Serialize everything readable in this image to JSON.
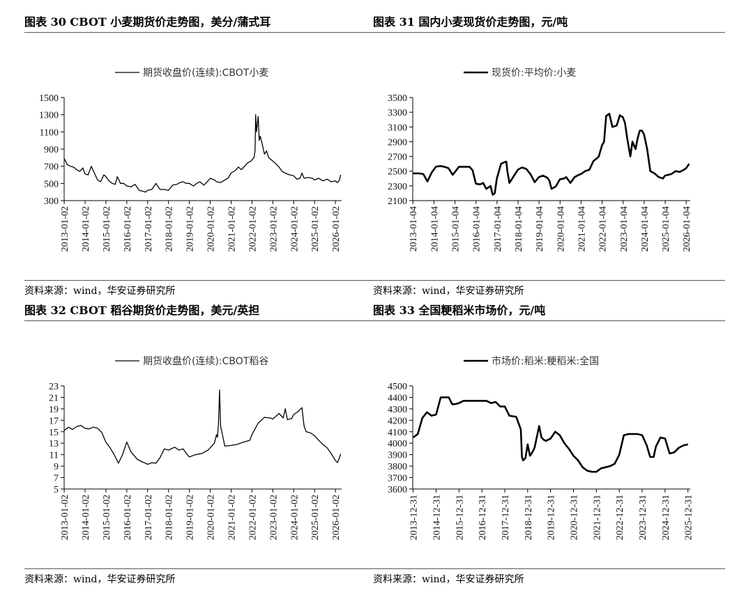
{
  "panels": [
    {
      "title": "图表 30 CBOT 小麦期货价走势图，美分/蒲式耳",
      "source": "资料来源：wind，华安证券研究所",
      "chart_data": {
        "type": "line",
        "legend": "期货收盘价(连续):CBOT小麦",
        "series_name": "期货收盘价(连续):CBOT小麦",
        "line_width": 1.3,
        "ylim": [
          300,
          1500
        ],
        "yticks": [
          300,
          500,
          700,
          900,
          1100,
          1300,
          1500
        ],
        "xlim": [
          2013.0,
          2026.3
        ],
        "xticks": [
          "2013-01-02",
          "2014-01-02",
          "2015-01-02",
          "2016-01-02",
          "2017-01-02",
          "2018-01-02",
          "2019-01-02",
          "2020-01-02",
          "2021-01-02",
          "2022-01-02",
          "2023-01-02",
          "2024-01-02",
          "2025-01-02",
          "2026-01-02"
        ],
        "x": [
          2013.0,
          2013.15,
          2013.3,
          2013.45,
          2013.6,
          2013.75,
          2013.9,
          2014.0,
          2014.15,
          2014.3,
          2014.45,
          2014.6,
          2014.75,
          2014.9,
          2015.0,
          2015.15,
          2015.3,
          2015.45,
          2015.55,
          2015.7,
          2015.85,
          2016.0,
          2016.2,
          2016.4,
          2016.6,
          2016.75,
          2016.9,
          2017.0,
          2017.2,
          2017.4,
          2017.5,
          2017.6,
          2017.8,
          2018.0,
          2018.2,
          2018.4,
          2018.55,
          2018.7,
          2018.85,
          2019.0,
          2019.2,
          2019.35,
          2019.5,
          2019.7,
          2019.9,
          2020.0,
          2020.2,
          2020.3,
          2020.5,
          2020.7,
          2020.85,
          2021.0,
          2021.2,
          2021.35,
          2021.5,
          2021.65,
          2021.8,
          2021.95,
          2022.1,
          2022.15,
          2022.18,
          2022.22,
          2022.3,
          2022.35,
          2022.4,
          2022.5,
          2022.6,
          2022.7,
          2022.8,
          2022.95,
          2023.1,
          2023.3,
          2023.45,
          2023.6,
          2023.8,
          2024.0,
          2024.15,
          2024.3,
          2024.4,
          2024.5,
          2024.7,
          2024.9,
          2025.0,
          2025.2,
          2025.4,
          2025.6,
          2025.8,
          2026.0,
          2026.1,
          2026.2,
          2026.25
        ],
        "y": [
          790,
          720,
          700,
          690,
          660,
          640,
          680,
          610,
          600,
          700,
          620,
          540,
          520,
          600,
          580,
          530,
          500,
          490,
          580,
          500,
          500,
          470,
          460,
          490,
          420,
          410,
          400,
          420,
          430,
          500,
          460,
          430,
          430,
          420,
          480,
          490,
          510,
          520,
          500,
          500,
          470,
          500,
          520,
          480,
          530,
          560,
          540,
          520,
          510,
          540,
          560,
          620,
          650,
          690,
          660,
          700,
          740,
          760,
          800,
          880,
          1300,
          1100,
          1280,
          1000,
          1050,
          950,
          840,
          880,
          800,
          770,
          740,
          690,
          640,
          620,
          600,
          590,
          550,
          560,
          620,
          560,
          570,
          560,
          540,
          560,
          530,
          550,
          520,
          530,
          510,
          540,
          600
        ]
      }
    },
    {
      "title": "图表 31 国内小麦现货价走势图，元/吨",
      "source": "资料来源：wind，华安证券研究所",
      "chart_data": {
        "type": "line",
        "legend": "现货价:平均价:小麦",
        "series_name": "现货价:平均价:小麦",
        "line_width": 2.6,
        "ylim": [
          2100,
          3500
        ],
        "yticks": [
          2100,
          2300,
          2500,
          2700,
          2900,
          3100,
          3300,
          3500
        ],
        "xlim": [
          2013.0,
          2026.2
        ],
        "xticks": [
          "2013-01-04",
          "2014-01-04",
          "2015-01-04",
          "2016-01-04",
          "2017-01-04",
          "2018-01-04",
          "2019-01-04",
          "2020-01-04",
          "2021-01-04",
          "2022-01-04",
          "2023-01-04",
          "2024-01-04",
          "2025-01-04",
          "2026-01-04"
        ],
        "x": [
          2013.0,
          2013.3,
          2013.5,
          2013.7,
          2013.9,
          2014.1,
          2014.3,
          2014.5,
          2014.7,
          2014.9,
          2015.2,
          2015.5,
          2015.7,
          2015.85,
          2016.0,
          2016.2,
          2016.35,
          2016.5,
          2016.6,
          2016.7,
          2016.8,
          2016.9,
          2017.0,
          2017.2,
          2017.35,
          2017.45,
          2017.5,
          2017.6,
          2017.8,
          2018.0,
          2018.2,
          2018.4,
          2018.6,
          2018.8,
          2019.0,
          2019.2,
          2019.4,
          2019.5,
          2019.6,
          2019.8,
          2020.0,
          2020.2,
          2020.3,
          2020.5,
          2020.7,
          2020.9,
          2021.0,
          2021.2,
          2021.4,
          2021.6,
          2021.7,
          2021.85,
          2022.0,
          2022.1,
          2022.2,
          2022.35,
          2022.5,
          2022.7,
          2022.85,
          2023.0,
          2023.1,
          2023.2,
          2023.35,
          2023.45,
          2023.6,
          2023.7,
          2023.8,
          2023.9,
          2024.0,
          2024.15,
          2024.3,
          2024.5,
          2024.7,
          2024.9,
          2025.0,
          2025.3,
          2025.5,
          2025.7,
          2025.9,
          2026.0,
          2026.15
        ],
        "y": [
          2470,
          2470,
          2460,
          2360,
          2480,
          2560,
          2570,
          2560,
          2540,
          2450,
          2560,
          2560,
          2560,
          2510,
          2330,
          2320,
          2340,
          2260,
          2280,
          2300,
          2180,
          2200,
          2400,
          2600,
          2620,
          2630,
          2500,
          2340,
          2430,
          2520,
          2550,
          2530,
          2460,
          2350,
          2420,
          2440,
          2410,
          2370,
          2260,
          2290,
          2390,
          2400,
          2420,
          2340,
          2420,
          2450,
          2460,
          2500,
          2520,
          2640,
          2660,
          2700,
          2850,
          2900,
          3250,
          3280,
          3100,
          3120,
          3260,
          3230,
          3150,
          2950,
          2700,
          2900,
          2800,
          2950,
          3050,
          3050,
          3000,
          2800,
          2500,
          2470,
          2420,
          2400,
          2440,
          2460,
          2500,
          2490,
          2520,
          2540,
          2600
        ]
      }
    },
    {
      "title": "图表 32 CBOT 稻谷期货价走势图，美元/英担",
      "source": "资料来源：wind，华安证券研究所",
      "chart_data": {
        "type": "line",
        "legend": "期货收盘价(连续):CBOT稻谷",
        "series_name": "期货收盘价(连续):CBOT稻谷",
        "line_width": 1.3,
        "ylim": [
          5,
          23
        ],
        "yticks": [
          5,
          7,
          9,
          11,
          13,
          15,
          17,
          19,
          21,
          23
        ],
        "xlim": [
          2013.0,
          2026.3
        ],
        "xticks": [
          "2013-01-02",
          "2014-01-02",
          "2015-01-02",
          "2016-01-02",
          "2017-01-02",
          "2018-01-02",
          "2019-01-02",
          "2020-01-02",
          "2021-01-02",
          "2022-01-02",
          "2023-01-02",
          "2024-01-02",
          "2025-01-02",
          "2026-01-02"
        ],
        "x": [
          2013.0,
          2013.2,
          2013.4,
          2013.6,
          2013.8,
          2014.0,
          2014.2,
          2014.4,
          2014.6,
          2014.8,
          2015.0,
          2015.2,
          2015.4,
          2015.6,
          2015.8,
          2016.0,
          2016.2,
          2016.5,
          2016.7,
          2016.9,
          2017.0,
          2017.2,
          2017.4,
          2017.6,
          2017.8,
          2018.0,
          2018.3,
          2018.5,
          2018.7,
          2018.9,
          2019.0,
          2019.3,
          2019.6,
          2019.9,
          2020.0,
          2020.2,
          2020.3,
          2020.35,
          2020.4,
          2020.45,
          2020.5,
          2020.7,
          2021.0,
          2021.3,
          2021.6,
          2021.9,
          2022.0,
          2022.3,
          2022.6,
          2022.9,
          2023.0,
          2023.3,
          2023.5,
          2023.6,
          2023.7,
          2023.9,
          2024.0,
          2024.2,
          2024.4,
          2024.5,
          2024.6,
          2024.8,
          2025.0,
          2025.2,
          2025.4,
          2025.6,
          2025.8,
          2026.0,
          2026.1,
          2026.2,
          2026.25
        ],
        "y": [
          15.2,
          15.8,
          15.4,
          15.9,
          16.1,
          15.6,
          15.5,
          15.8,
          15.6,
          14.9,
          13.2,
          12.2,
          11.0,
          9.5,
          11.0,
          13.2,
          11.5,
          10.2,
          9.8,
          9.5,
          9.3,
          9.6,
          9.5,
          10.5,
          12.0,
          11.8,
          12.3,
          11.8,
          12.0,
          11.0,
          10.6,
          11.0,
          11.2,
          11.8,
          12.2,
          13.0,
          14.5,
          14.0,
          16.5,
          22.3,
          16.0,
          12.5,
          12.6,
          12.8,
          13.2,
          13.5,
          14.5,
          16.5,
          17.5,
          17.4,
          17.2,
          18.2,
          17.4,
          19.0,
          17.1,
          17.3,
          18.0,
          18.5,
          19.2,
          16.0,
          15.0,
          14.8,
          14.3,
          13.5,
          12.8,
          12.2,
          11.2,
          10.0,
          9.6,
          10.5,
          11.1
        ]
      }
    },
    {
      "title": "图表 33 全国粳稻米市场价，元/吨",
      "source": "资料来源：wind，华安证券研究所",
      "chart_data": {
        "type": "line",
        "legend": "市场价:稻米:粳稻米:全国",
        "series_name": "市场价:稻米:粳稻米:全国",
        "line_width": 2.6,
        "ylim": [
          3600,
          4500
        ],
        "yticks": [
          3600,
          3700,
          3800,
          3900,
          4000,
          4100,
          4200,
          4300,
          4400,
          4500
        ],
        "xlim": [
          2013.98,
          2026.1
        ],
        "xticks": [
          "2013-12-31",
          "2014-12-31",
          "2015-12-31",
          "2016-12-31",
          "2017-12-31",
          "2018-12-31",
          "2019-12-31",
          "2020-12-31",
          "2021-12-31",
          "2022-12-31",
          "2023-12-31",
          "2024-12-31",
          "2025-12-31"
        ],
        "x": [
          2014.0,
          2014.2,
          2014.4,
          2014.6,
          2014.8,
          2015.0,
          2015.2,
          2015.4,
          2015.55,
          2015.7,
          2015.8,
          2016.0,
          2016.2,
          2016.5,
          2016.8,
          2017.0,
          2017.2,
          2017.4,
          2017.6,
          2017.8,
          2018.0,
          2018.2,
          2018.5,
          2018.7,
          2018.75,
          2018.8,
          2018.9,
          2019.0,
          2019.1,
          2019.2,
          2019.3,
          2019.5,
          2019.6,
          2019.7,
          2019.8,
          2020.0,
          2020.2,
          2020.4,
          2020.6,
          2020.8,
          2021.0,
          2021.2,
          2021.4,
          2021.6,
          2021.8,
          2022.0,
          2022.2,
          2022.4,
          2022.6,
          2022.8,
          2023.0,
          2023.2,
          2023.4,
          2023.6,
          2023.8,
          2024.0,
          2024.2,
          2024.35,
          2024.5,
          2024.6,
          2024.8,
          2025.0,
          2025.2,
          2025.4,
          2025.6,
          2025.8,
          2026.0
        ],
        "y": [
          4050,
          4080,
          4220,
          4270,
          4240,
          4250,
          4400,
          4400,
          4400,
          4340,
          4340,
          4350,
          4370,
          4370,
          4370,
          4370,
          4370,
          4350,
          4360,
          4320,
          4320,
          4240,
          4230,
          4120,
          3880,
          3850,
          3870,
          3990,
          3890,
          3920,
          3960,
          4150,
          4050,
          4030,
          4020,
          4040,
          4100,
          4070,
          4000,
          3950,
          3890,
          3850,
          3790,
          3760,
          3750,
          3750,
          3780,
          3790,
          3800,
          3820,
          3900,
          4070,
          4080,
          4080,
          4080,
          4070,
          3980,
          3880,
          3880,
          3970,
          4050,
          4040,
          3910,
          3920,
          3960,
          3980,
          3990
        ]
      }
    }
  ]
}
